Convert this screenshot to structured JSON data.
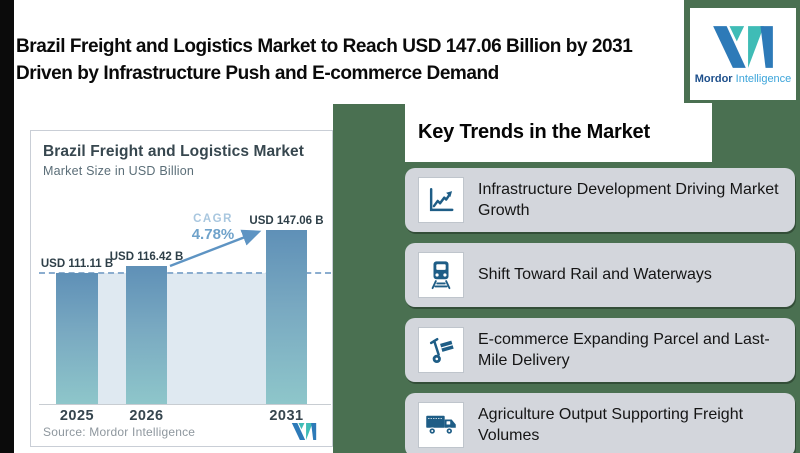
{
  "header": {
    "title": "Brazil Freight and Logistics Market to Reach USD 147.06 Billion by 2031 Driven by Infrastructure Push and E-commerce Demand",
    "logo": {
      "brand_bold": "Mordor",
      "brand_light": "Intelligence"
    }
  },
  "chart_card": {
    "title": "Brazil Freight and Logistics Market",
    "subtitle": "Market Size in USD Billion",
    "cagr_label": "CAGR",
    "cagr_value": "4.78%",
    "source": "Source: Mordor Intelligence"
  },
  "chart_data": {
    "type": "bar",
    "title": "Brazil Freight and Logistics Market",
    "subtitle": "Market Size in USD Billion",
    "categories": [
      "2025",
      "2026",
      "2031"
    ],
    "values": [
      111.11,
      116.42,
      147.06
    ],
    "value_labels": [
      "USD 111.11 B",
      "USD 116.42 B",
      "USD 147.06 B"
    ],
    "unit": "USD Billion",
    "cagr_percent": 4.78,
    "ylim": [
      0,
      180
    ],
    "reference_line": 111.11,
    "legend": "none",
    "grid": "off",
    "bar_gradient": [
      "#5f90b7",
      "#8ec6ca"
    ],
    "highlight_area_color": "#dfe9f1",
    "dashed_line_color": "#8badcf",
    "arrow_color": "#5e94c3"
  },
  "trends": {
    "heading": "Key Trends in the Market",
    "items": [
      {
        "icon": "line-chart-icon",
        "label": "Infrastructure Development Driving Market Growth"
      },
      {
        "icon": "train-icon",
        "label": "Shift Toward Rail and Waterways"
      },
      {
        "icon": "hand-truck-icon",
        "label": "E-commerce Expanding Parcel and Last-Mile Delivery"
      },
      {
        "icon": "truck-icon",
        "label": "Agriculture Output Supporting Freight Volumes"
      }
    ]
  },
  "theme": {
    "background_green": "#4a7051",
    "left_strip_black": "#0b0b0b",
    "card_gray": "#d3d6dc",
    "icon_blue": "#1e5d86",
    "logo_blue": "#2d7ab8",
    "logo_teal": "#3fbcb6"
  }
}
